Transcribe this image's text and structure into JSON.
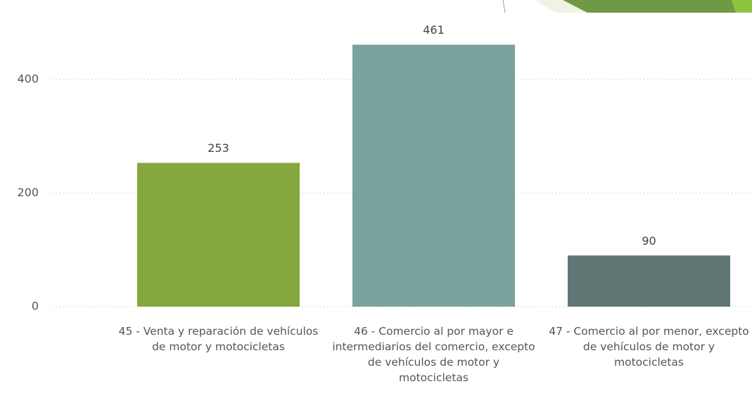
{
  "chart_data": {
    "type": "bar",
    "categories": [
      "45 - Venta y reparación de vehículos de motor y motocicletas",
      "46 - Comercio al por mayor e intermediarios del comercio, excepto de vehículos de motor y motocicletas",
      "47 - Comercio al por menor, excepto de vehículos de motor y motocicletas"
    ],
    "values": [
      253,
      461,
      90
    ],
    "colors": [
      "#84a83e",
      "#7aa29e",
      "#5e7775"
    ],
    "ylim": [
      0,
      500
    ],
    "yticks": [
      0,
      200,
      400
    ],
    "grid": true
  }
}
